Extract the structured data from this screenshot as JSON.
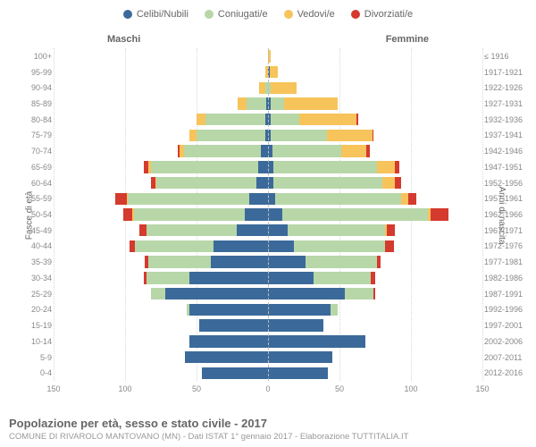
{
  "type": "population-pyramid",
  "legend": [
    {
      "label": "Celibi/Nubili",
      "color": "#3b6a9a"
    },
    {
      "label": "Coniugati/e",
      "color": "#b7d7a8"
    },
    {
      "label": "Vedovi/e",
      "color": "#f7c35b"
    },
    {
      "label": "Divorziati/e",
      "color": "#d53a2e"
    }
  ],
  "side_labels": {
    "male": "Maschi",
    "female": "Femmine"
  },
  "axis_titles": {
    "left": "Fasce di età",
    "right": "Anni di nascita"
  },
  "x_axis": {
    "min": -150,
    "max": 150,
    "ticks": [
      150,
      100,
      50,
      0,
      50,
      100,
      150
    ]
  },
  "colors": {
    "single": "#3b6a9a",
    "married": "#b7d7a8",
    "widowed": "#f7c35b",
    "divorced": "#d53a2e",
    "grid": "#d8d8d8",
    "centerline": "#bbbbbb",
    "background": "#ffffff",
    "text": "#666666"
  },
  "font_sizes": {
    "legend": 11,
    "side_label": 11,
    "row_label": 9,
    "x_label": 9,
    "axis_title": 10,
    "footer_title": 13,
    "footer_sub": 9.5
  },
  "rows": [
    {
      "age": "100+",
      "year": "≤ 1916",
      "m": [
        0,
        0,
        0,
        0
      ],
      "f": [
        0,
        0,
        2,
        0
      ]
    },
    {
      "age": "95-99",
      "year": "1917-1921",
      "m": [
        0,
        0,
        2,
        0
      ],
      "f": [
        1,
        0,
        6,
        0
      ]
    },
    {
      "age": "90-94",
      "year": "1922-1926",
      "m": [
        0,
        2,
        4,
        0
      ],
      "f": [
        0,
        2,
        18,
        0
      ]
    },
    {
      "age": "85-89",
      "year": "1927-1931",
      "m": [
        1,
        14,
        6,
        0
      ],
      "f": [
        2,
        9,
        38,
        0
      ]
    },
    {
      "age": "80-84",
      "year": "1932-1936",
      "m": [
        2,
        42,
        6,
        0
      ],
      "f": [
        2,
        20,
        40,
        1
      ]
    },
    {
      "age": "75-79",
      "year": "1937-1941",
      "m": [
        2,
        48,
        5,
        0
      ],
      "f": [
        2,
        39,
        32,
        1
      ]
    },
    {
      "age": "70-74",
      "year": "1942-1946",
      "m": [
        5,
        54,
        3,
        1
      ],
      "f": [
        3,
        48,
        18,
        2
      ]
    },
    {
      "age": "65-69",
      "year": "1947-1951",
      "m": [
        7,
        75,
        2,
        3
      ],
      "f": [
        4,
        72,
        13,
        3
      ]
    },
    {
      "age": "60-64",
      "year": "1952-1956",
      "m": [
        8,
        70,
        1,
        3
      ],
      "f": [
        4,
        76,
        9,
        4
      ]
    },
    {
      "age": "55-59",
      "year": "1957-1961",
      "m": [
        13,
        85,
        1,
        8
      ],
      "f": [
        5,
        88,
        5,
        6
      ]
    },
    {
      "age": "50-54",
      "year": "1962-1966",
      "m": [
        16,
        78,
        1,
        6
      ],
      "f": [
        10,
        102,
        2,
        12
      ]
    },
    {
      "age": "45-49",
      "year": "1967-1971",
      "m": [
        22,
        63,
        0,
        5
      ],
      "f": [
        14,
        68,
        1,
        6
      ]
    },
    {
      "age": "40-44",
      "year": "1972-1976",
      "m": [
        38,
        55,
        0,
        4
      ],
      "f": [
        18,
        64,
        0,
        6
      ]
    },
    {
      "age": "35-39",
      "year": "1977-1981",
      "m": [
        40,
        44,
        0,
        2
      ],
      "f": [
        26,
        50,
        0,
        3
      ]
    },
    {
      "age": "30-34",
      "year": "1982-1986",
      "m": [
        55,
        30,
        0,
        2
      ],
      "f": [
        32,
        40,
        0,
        3
      ]
    },
    {
      "age": "25-29",
      "year": "1987-1991",
      "m": [
        72,
        10,
        0,
        0
      ],
      "f": [
        54,
        20,
        0,
        1
      ]
    },
    {
      "age": "20-24",
      "year": "1992-1996",
      "m": [
        55,
        2,
        0,
        0
      ],
      "f": [
        44,
        5,
        0,
        0
      ]
    },
    {
      "age": "15-19",
      "year": "1997-2001",
      "m": [
        48,
        0,
        0,
        0
      ],
      "f": [
        39,
        0,
        0,
        0
      ]
    },
    {
      "age": "10-14",
      "year": "2002-2006",
      "m": [
        55,
        0,
        0,
        0
      ],
      "f": [
        68,
        0,
        0,
        0
      ]
    },
    {
      "age": "5-9",
      "year": "2007-2011",
      "m": [
        58,
        0,
        0,
        0
      ],
      "f": [
        45,
        0,
        0,
        0
      ]
    },
    {
      "age": "0-4",
      "year": "2012-2016",
      "m": [
        46,
        0,
        0,
        0
      ],
      "f": [
        42,
        0,
        0,
        0
      ]
    }
  ],
  "footer": {
    "title": "Popolazione per età, sesso e stato civile - 2017",
    "sub": "COMUNE DI RIVAROLO MANTOVANO (MN) - Dati ISTAT 1° gennaio 2017 - Elaborazione TUTTITALIA.IT"
  }
}
